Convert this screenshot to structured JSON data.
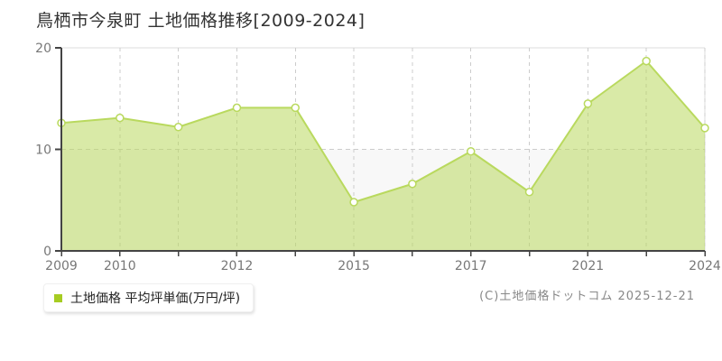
{
  "page": {
    "title": "鳥栖市今泉町 土地価格推移[2009-2024]",
    "footer": "(C)土地価格ドットコム 2025-12-21"
  },
  "legend": {
    "label": "土地価格 平均坪単価(万円/坪)",
    "marker_color": "#a6cc22"
  },
  "chart_data": {
    "type": "area",
    "title": "鳥栖市今泉町 土地価格推移[2009-2024]",
    "categories": [
      "2009",
      "2010",
      "2011",
      "2012",
      "2013",
      "2015",
      "2016",
      "2017",
      "2019",
      "2021",
      "2022",
      "2024"
    ],
    "series": [
      {
        "name": "土地価格 平均坪単価(万円/坪)",
        "values": [
          12.6,
          13.1,
          12.2,
          14.1,
          14.1,
          4.8,
          6.6,
          9.8,
          5.8,
          14.5,
          18.7,
          12.1
        ]
      }
    ],
    "x_labeled_ticks": [
      "2009",
      "2010",
      "2012",
      "2015",
      "2017",
      "2021",
      "2024"
    ],
    "xlabel": "",
    "ylabel": "",
    "ylim": [
      0,
      20
    ],
    "yticks": [
      0,
      10,
      20
    ],
    "grid": "dashed",
    "legend_position": "bottom-left",
    "colors": {
      "line": "#b9d95e",
      "fill": "#b9d95e",
      "fill_opacity": 0.55,
      "marker_fill": "#ffffff",
      "grid": "#cccccc",
      "axis": "#444444",
      "border": "#dddddd",
      "band": "#f8f8f8",
      "tick_label": "#777777"
    }
  }
}
